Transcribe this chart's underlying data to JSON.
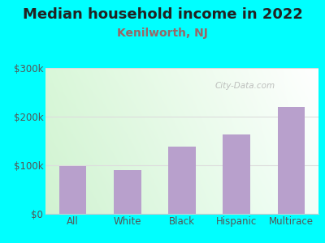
{
  "title": "Median household income in 2022",
  "subtitle": "Kenilworth, NJ",
  "categories": [
    "All",
    "White",
    "Black",
    "Hispanic",
    "Multirace"
  ],
  "values": [
    98000,
    90000,
    138000,
    163000,
    220000
  ],
  "bar_color": "#b8a0cc",
  "ylim": [
    0,
    300000
  ],
  "yticks": [
    0,
    100000,
    200000,
    300000
  ],
  "ytick_labels": [
    "$0",
    "$100k",
    "$200k",
    "$300k"
  ],
  "title_fontsize": 13,
  "subtitle_fontsize": 10,
  "subtitle_color": "#996666",
  "title_color": "#222222",
  "background_outer": "#00ffff",
  "tick_color": "#555555",
  "watermark": "City-Data.com",
  "grid_color": "#dddddd",
  "spine_color": "#cccccc"
}
